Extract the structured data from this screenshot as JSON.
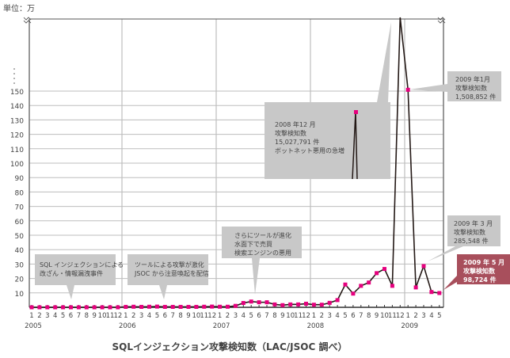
{
  "chart_data": {
    "type": "line",
    "title": "SQLインジェクション攻撃検知数（LAC/JSOC 調べ）",
    "unit_label": "単位：万",
    "ylabel": "",
    "xlabel": "",
    "ylim": [
      0,
      150
    ],
    "y_ticks": [
      10,
      20,
      30,
      40,
      50,
      60,
      70,
      80,
      90,
      100,
      110,
      120,
      130,
      140,
      150
    ],
    "axis_break": true,
    "grid": true,
    "years": [
      "2005",
      "2006",
      "2007",
      "2008",
      "2009"
    ],
    "month_labels": [
      "1",
      "2",
      "3",
      "4",
      "5",
      "6",
      "7",
      "8",
      "9",
      "10",
      "11",
      "12"
    ],
    "series": [
      {
        "name": "攻撃検知数",
        "color": "#e6007e",
        "values": [
          0,
          0,
          0,
          0,
          0,
          0,
          0,
          0,
          0,
          0,
          0,
          0,
          0.3,
          0.4,
          0.3,
          0.4,
          0.5,
          0.3,
          0.3,
          0.3,
          0.3,
          0.3,
          0.4,
          0.5,
          0.4,
          0.4,
          1,
          3,
          4,
          3.5,
          3.5,
          2,
          1.5,
          2,
          2,
          2.5,
          1.8,
          1.8,
          3.1,
          5,
          15.8,
          9.5,
          14.9,
          17.2,
          23.7,
          26.6,
          14.9,
          1502.8,
          150.9,
          13.8,
          28.6,
          10.6,
          9.9
        ]
      }
    ],
    "annotations": [
      {
        "lines": [
          "SQL インジェクションによる",
          "改ざん・情報漏洩事件"
        ]
      },
      {
        "lines": [
          "ツールによる攻撃が激化",
          "JSOC から注意喚起を配信"
        ]
      },
      {
        "lines": [
          "さらにツールが進化",
          "水面下で売買",
          "検索エンジンの悪用"
        ]
      },
      {
        "lines": [
          "2008 年12 月",
          "攻撃検知数",
          "15,027,791 件",
          "ボットネット悪用の急増"
        ]
      },
      {
        "lines": [
          "2009 年1月",
          "攻撃検知数",
          "1,508,852 件"
        ]
      },
      {
        "lines": [
          "2009 年 3 月",
          "攻撃検知数",
          "285,548 件"
        ]
      },
      {
        "lines": [
          "2009 年 5 月",
          "攻撃検知数",
          "98,724 件"
        ]
      }
    ],
    "colors": {
      "marker": "#e6007e",
      "line": "#231815",
      "grid": "#bdbdbd",
      "callout": "#c8c8c8",
      "highlight": "#a84f5c"
    }
  }
}
